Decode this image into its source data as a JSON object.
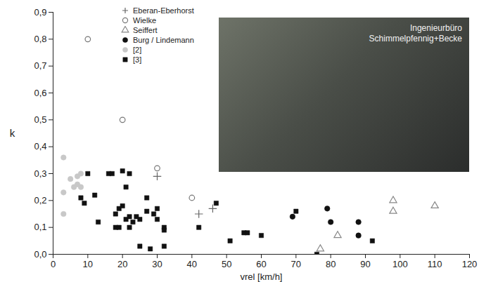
{
  "chart_data": {
    "type": "scatter",
    "x_label": "vrel [km/h]",
    "y_label": "k",
    "xlim": [
      0,
      120
    ],
    "xticks": [
      0,
      10,
      20,
      30,
      40,
      50,
      60,
      70,
      80,
      90,
      100,
      110,
      120
    ],
    "ylim": [
      0,
      0.9
    ],
    "yticks": [
      {
        "value": 0,
        "label": "0,0"
      },
      {
        "value": 0.1,
        "label": "0,1"
      },
      {
        "value": 0.2,
        "label": "0,2"
      },
      {
        "value": 0.3,
        "label": "0,3"
      },
      {
        "value": 0.4,
        "label": "0,4"
      },
      {
        "value": 0.5,
        "label": "0,5"
      },
      {
        "value": 0.6,
        "label": "0,6"
      },
      {
        "value": 0.7,
        "label": "0,7"
      },
      {
        "value": 0.8,
        "label": "0,8"
      },
      {
        "value": 0.9,
        "label": "0,9"
      }
    ],
    "grid": false,
    "legend": "top-left",
    "annotations": [
      "Ingenieurbüro",
      "Schimmelpfennig+Becke"
    ],
    "series": [
      {
        "name": "Eberan-Eberhorst",
        "color": "#666666",
        "marker": "plus",
        "x": [
          30,
          42,
          46
        ],
        "values": [
          0.29,
          0.15,
          0.17
        ]
      },
      {
        "name": "Wielke",
        "color": "#777777",
        "marker": "circle-open",
        "x": [
          10,
          20,
          30,
          40
        ],
        "values": [
          0.8,
          0.5,
          0.32,
          0.21
        ]
      },
      {
        "name": "Seiffert",
        "color": "#888888",
        "marker": "triangle-open",
        "x": [
          77,
          82,
          98,
          98,
          110
        ],
        "values": [
          0.02,
          0.07,
          0.2,
          0.16,
          0.18
        ]
      },
      {
        "name": "Burg / Lindemann",
        "color": "#111111",
        "marker": "circle",
        "x": [
          69,
          79,
          80,
          88,
          88
        ],
        "values": [
          0.14,
          0.17,
          0.12,
          0.12,
          0.07
        ]
      },
      {
        "name": "[2]",
        "color": "#c8c8c8",
        "marker": "circle",
        "x": [
          3,
          3,
          3,
          5,
          6,
          7,
          7,
          8,
          8
        ],
        "values": [
          0.36,
          0.23,
          0.15,
          0.28,
          0.25,
          0.26,
          0.29,
          0.3,
          0.25
        ]
      },
      {
        "name": "[3]",
        "color": "#111111",
        "marker": "square",
        "x": [
          8,
          9,
          10,
          12,
          13,
          16,
          17,
          18,
          18,
          19,
          19,
          20,
          20,
          21,
          21,
          22,
          22,
          22,
          23,
          24,
          25,
          25,
          27,
          27,
          28,
          29,
          30,
          30,
          32,
          32,
          32,
          42,
          47,
          51,
          55,
          56,
          60,
          70,
          76,
          92
        ],
        "values": [
          0.21,
          0.19,
          0.3,
          0.22,
          0.12,
          0.3,
          0.3,
          0.1,
          0.15,
          0.17,
          0.1,
          0.31,
          0.18,
          0.25,
          0.13,
          0.3,
          0.14,
          0.1,
          0.12,
          0.14,
          0.03,
          0.13,
          0.16,
          0.21,
          0.02,
          0.15,
          0.17,
          0.13,
          0.1,
          0.09,
          0.03,
          0.1,
          0.19,
          0.05,
          0.08,
          0.08,
          0.07,
          0.16,
          0.0,
          0.05
        ]
      }
    ]
  }
}
